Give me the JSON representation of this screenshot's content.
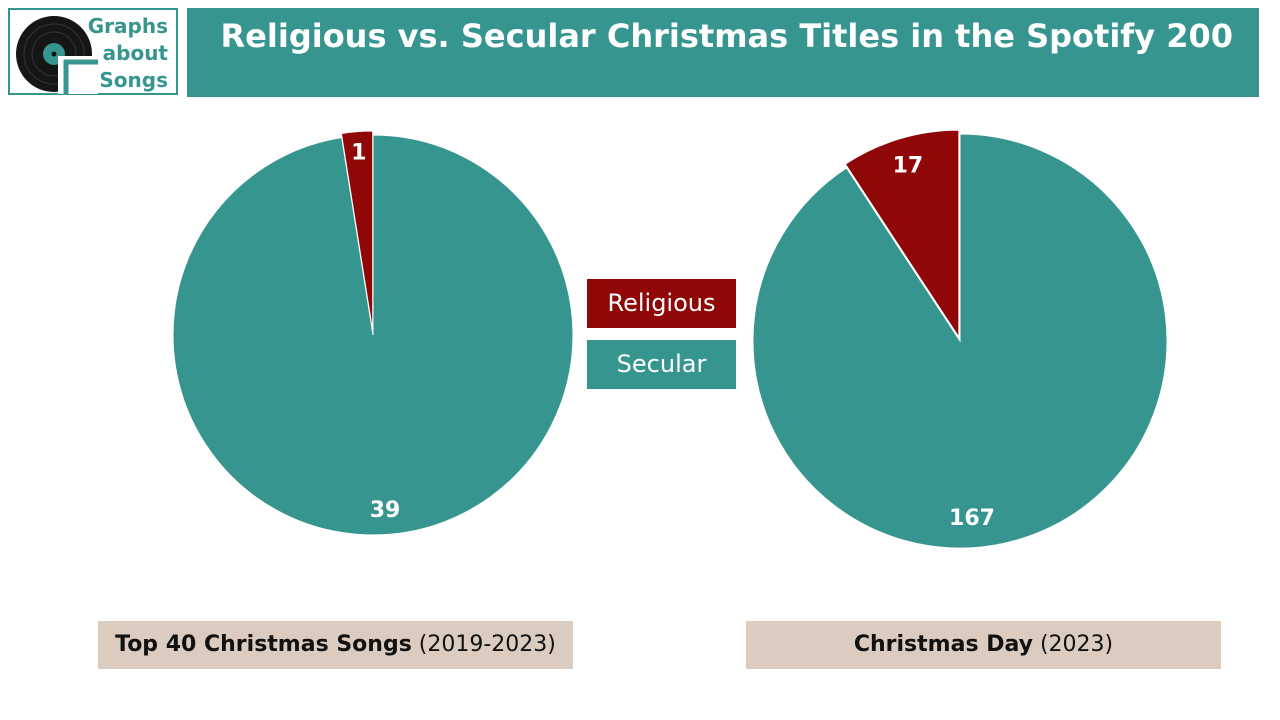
{
  "logo": {
    "lines": [
      "Graphs",
      "about",
      "Songs"
    ]
  },
  "title": "Religious vs. Secular Christmas Titles in the Spotify 200",
  "colors": {
    "religious": "#8f0707",
    "secular": "#36958f",
    "caption_bg": "#dccbbf"
  },
  "legend": [
    {
      "label": "Religious",
      "color": "#8f0707"
    },
    {
      "label": "Secular",
      "color": "#36958f"
    }
  ],
  "chart_data": [
    {
      "type": "pie",
      "caption_bold": "Top 40 Christmas Songs",
      "caption_rest": " (2019-2023)",
      "slices": [
        {
          "category": "Religious",
          "value": 1,
          "color": "#8f0707"
        },
        {
          "category": "Secular",
          "value": 39,
          "color": "#36958f"
        }
      ]
    },
    {
      "type": "pie",
      "caption_bold": "Christmas Day",
      "caption_rest": " (2023)",
      "slices": [
        {
          "category": "Religious",
          "value": 17,
          "color": "#8f0707"
        },
        {
          "category": "Secular",
          "value": 167,
          "color": "#36958f"
        }
      ]
    }
  ]
}
